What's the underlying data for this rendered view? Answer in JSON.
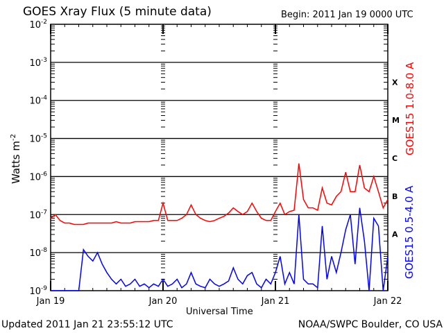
{
  "chart_data": {
    "type": "line",
    "title": "GOES Xray Flux (5 minute data)",
    "begin": "Begin:  2011 Jan 19 0000 UTC",
    "xlabel": "Universal Time",
    "ylabel": "Watts m",
    "ylabel_exp": "-2",
    "y_scale": "log",
    "ylim": [
      1e-09,
      0.01
    ],
    "y_ticks": [
      {
        "base": "10",
        "exp": "-2"
      },
      {
        "base": "10",
        "exp": "-3"
      },
      {
        "base": "10",
        "exp": "-4"
      },
      {
        "base": "10",
        "exp": "-5"
      },
      {
        "base": "10",
        "exp": "-6"
      },
      {
        "base": "10",
        "exp": "-7"
      },
      {
        "base": "10",
        "exp": "-8"
      },
      {
        "base": "10",
        "exp": "-9"
      }
    ],
    "x_ticks": [
      "Jan 19",
      "Jan 20",
      "Jan 21",
      "Jan 22"
    ],
    "x_unit": "hours since 2011 Jan 19 0000 UTC",
    "xlim": [
      0,
      72
    ],
    "grid": "horizontal at decades",
    "flare_classes": [
      "X",
      "M",
      "C",
      "B",
      "A"
    ],
    "series": [
      {
        "name": "GOES15 1.0-8.0 A",
        "color": "#ff0000",
        "values": [
          8e-08,
          1e-07,
          7e-08,
          6e-08,
          6e-08,
          5.5e-08,
          5.5e-08,
          5.5e-08,
          6e-08,
          6e-08,
          6e-08,
          6e-08,
          6e-08,
          6e-08,
          6.5e-08,
          6e-08,
          6e-08,
          6e-08,
          6.5e-08,
          6.5e-08,
          6.5e-08,
          6.5e-08,
          7e-08,
          7e-08,
          2e-07,
          7e-08,
          7e-08,
          7e-08,
          8e-08,
          1e-07,
          1.8e-07,
          1e-07,
          8e-08,
          7e-08,
          6.5e-08,
          7e-08,
          8e-08,
          9e-08,
          1.1e-07,
          1.5e-07,
          1.2e-07,
          1e-07,
          1.2e-07,
          2e-07,
          1.2e-07,
          8e-08,
          7e-08,
          7e-08,
          1.2e-07,
          2e-07,
          1e-07,
          1.2e-07,
          1.3e-07,
          2.2e-06,
          2.5e-07,
          1.5e-07,
          1.5e-07,
          1.3e-07,
          5e-07,
          2e-07,
          1.8e-07,
          3e-07,
          4e-07,
          1.3e-06,
          4e-07,
          4e-07,
          2e-06,
          5e-07,
          4e-07,
          1e-06,
          4e-07,
          1.5e-07,
          2.5e-07
        ]
      },
      {
        "name": "GOES15 0.5-4.0 A",
        "color": "#0000ff",
        "values": [
          1e-09,
          1e-09,
          1e-09,
          1e-09,
          1e-09,
          1e-09,
          1e-09,
          1.2e-08,
          8e-09,
          6e-09,
          1e-08,
          5e-09,
          3e-09,
          2e-09,
          1.5e-09,
          2e-09,
          1.3e-09,
          1.5e-09,
          2e-09,
          1.3e-09,
          1.5e-09,
          1.2e-09,
          1.5e-09,
          1.3e-09,
          2e-09,
          1.3e-09,
          1.5e-09,
          2e-09,
          1.2e-09,
          1.5e-09,
          3e-09,
          1.5e-09,
          1.3e-09,
          1.2e-09,
          2e-09,
          1.5e-09,
          1.3e-09,
          1.5e-09,
          1.8e-09,
          4e-09,
          2e-09,
          1.5e-09,
          2.5e-09,
          3e-09,
          1.5e-09,
          1.2e-09,
          2e-09,
          1.5e-09,
          3e-09,
          8e-09,
          1.5e-09,
          3e-09,
          1.5e-09,
          1e-07,
          2e-09,
          1.5e-09,
          1.5e-09,
          1.2e-09,
          5e-08,
          2e-09,
          8e-09,
          3e-09,
          1e-08,
          4e-08,
          1e-07,
          5e-09,
          1.5e-07,
          2e-08,
          1e-09,
          8e-08,
          5e-08,
          1e-09,
          8e-09
        ]
      }
    ]
  },
  "footer": {
    "updated": "Updated 2011 Jan 21 23:55:12 UTC",
    "credit": "NOAA/SWPC Boulder, CO USA"
  }
}
